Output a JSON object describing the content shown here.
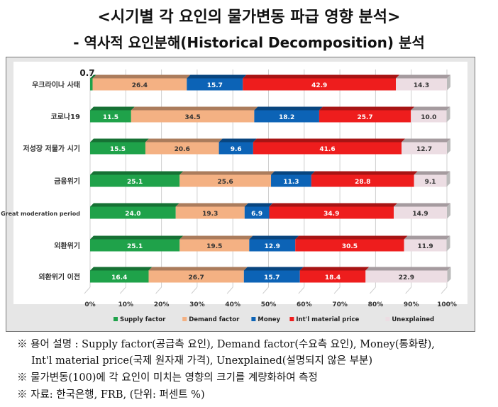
{
  "title": "<시기별 각 요인의 물가변동 파급 영향 분석>",
  "subtitle": "- 역사적 요인분해(Historical Decomposition) 분석",
  "chart_data": {
    "type": "bar",
    "orientation": "horizontal-stacked-100",
    "categories": [
      "우크라이나 사태",
      "코로나19",
      "저성장 저물가 시기",
      "금융위기",
      "Great moderation period",
      "외환위기",
      "외환위기 이전"
    ],
    "series": [
      {
        "name": "Supply factor",
        "color": "#1fa24a",
        "values": [
          0.7,
          11.5,
          15.5,
          25.1,
          24.0,
          25.1,
          16.4
        ]
      },
      {
        "name": "Demand factor",
        "color": "#f4b183",
        "values": [
          26.4,
          34.5,
          20.6,
          25.6,
          19.3,
          19.5,
          26.7
        ]
      },
      {
        "name": "Money",
        "color": "#0c63b6",
        "values": [
          15.7,
          18.2,
          9.6,
          11.3,
          6.9,
          12.9,
          15.7
        ]
      },
      {
        "name": "Int'l material price",
        "color": "#ee1d1d",
        "values": [
          42.9,
          25.7,
          41.6,
          28.8,
          34.9,
          30.5,
          18.4
        ]
      },
      {
        "name": "Unexplained",
        "color": "#ecdde3",
        "values": [
          14.3,
          10.0,
          12.7,
          9.1,
          14.9,
          11.9,
          22.9
        ]
      }
    ],
    "xticks": [
      "0%",
      "10%",
      "20%",
      "30%",
      "40%",
      "50%",
      "60%",
      "70%",
      "80%",
      "90%",
      "100%"
    ],
    "xlim": [
      0,
      100
    ],
    "grid": true,
    "legend": "bottom",
    "annotations": [
      "0.7"
    ]
  },
  "notes": [
    "※ 용어 설명 : Supply factor(공급측 요인), Demand factor(수요측 요인), Money(통화량),",
    "Int'l material price(국제 원자재 가격), Unexplained(설명되지 않은 부분)",
    "※ 물가변동(100)에 각 요인이 미치는 영향의 크기를 계량화하여 측정",
    "※ 자료: 한국은행, FRB, (단위: 퍼센트 %)"
  ]
}
